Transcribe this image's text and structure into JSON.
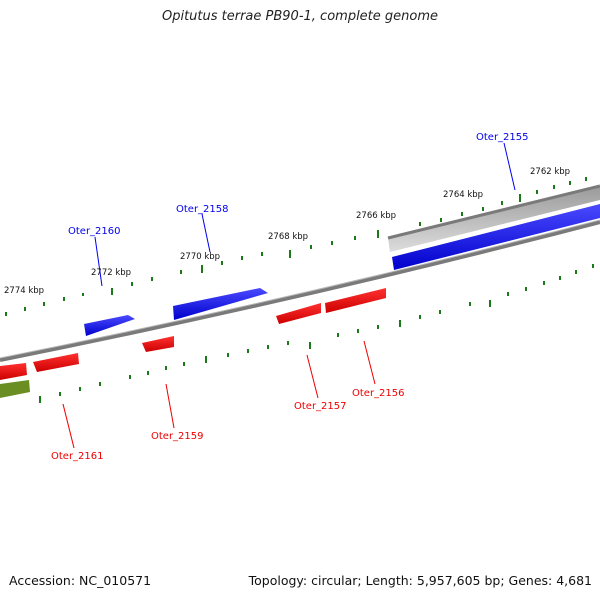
{
  "title": "Opitutus terrae PB90-1, complete genome",
  "footer": {
    "accession": "Accession: NC_010571",
    "summary": "Topology: circular; Length: 5,957,605 bp; Genes: 4,681"
  },
  "colors": {
    "forward_gene": "#0000ee",
    "reverse_gene": "#ee0000",
    "other_feature": "#6b8e23",
    "tick": "#1a7a1a",
    "backbone": "#777777",
    "selected_gene": "#b0b0b0"
  },
  "scale": {
    "unit": "kbp",
    "labels": [
      "2774 kbp",
      "2772 kbp",
      "2770 kbp",
      "2768 kbp",
      "2766 kbp",
      "2764 kbp",
      "2762 kbp"
    ]
  },
  "genes": [
    {
      "locus": "Oter_2155",
      "strand": "forward"
    },
    {
      "locus": "Oter_2156",
      "strand": "reverse"
    },
    {
      "locus": "Oter_2157",
      "strand": "reverse"
    },
    {
      "locus": "Oter_2158",
      "strand": "forward"
    },
    {
      "locus": "Oter_2159",
      "strand": "reverse"
    },
    {
      "locus": "Oter_2160",
      "strand": "forward"
    },
    {
      "locus": "Oter_2161",
      "strand": "reverse"
    }
  ]
}
